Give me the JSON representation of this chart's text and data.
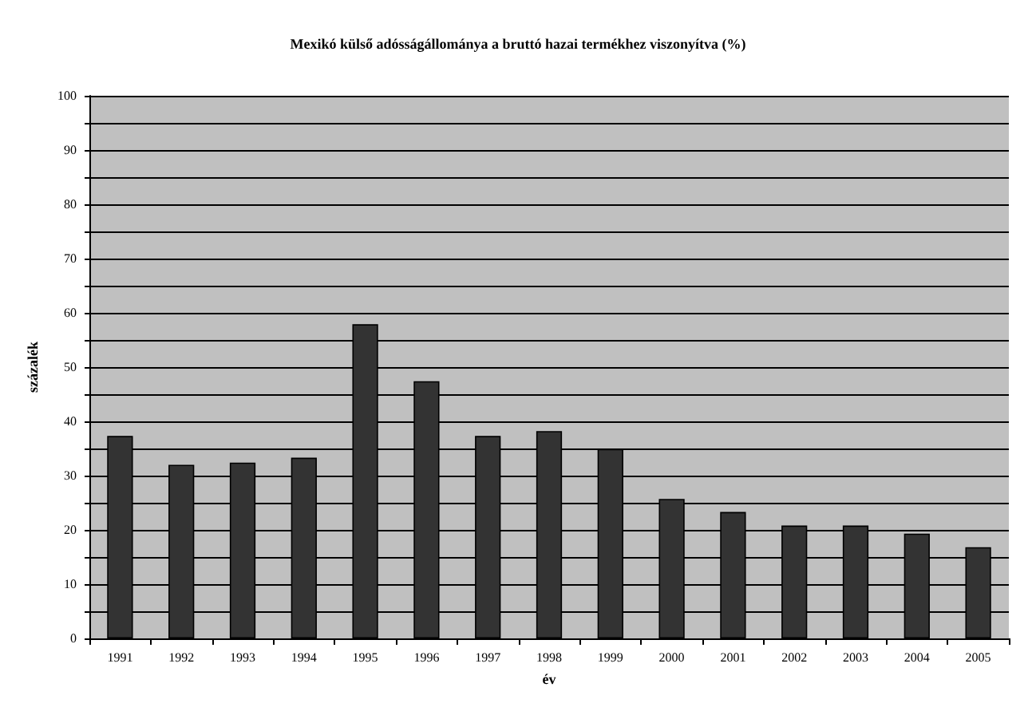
{
  "chart_data": {
    "type": "bar",
    "title": "Mexikó külső adósságállománya a bruttó hazai termékhez viszonyítva (%)",
    "xlabel": "év",
    "ylabel": "százalék",
    "categories": [
      "1991",
      "1992",
      "1993",
      "1994",
      "1995",
      "1996",
      "1997",
      "1998",
      "1999",
      "2000",
      "2001",
      "2002",
      "2003",
      "2004",
      "2005"
    ],
    "values": [
      37.3,
      32.0,
      32.4,
      33.3,
      57.9,
      47.4,
      37.3,
      38.2,
      34.9,
      25.7,
      23.3,
      20.8,
      20.8,
      19.3,
      16.8
    ],
    "color": "#333333",
    "ylim": [
      0,
      100
    ],
    "yticks": [
      0,
      {
        "value": 5,
        "label": null
      },
      10,
      {
        "value": 15,
        "label": null
      },
      20,
      {
        "value": 25,
        "label": null
      },
      30,
      {
        "value": 35,
        "label": null
      },
      40,
      {
        "value": 45,
        "label": null
      },
      50,
      {
        "value": 55,
        "label": null
      },
      60,
      {
        "value": 65,
        "label": null
      },
      70,
      {
        "value": 75,
        "label": null
      },
      80,
      {
        "value": 85,
        "label": null
      },
      90,
      {
        "value": 95,
        "label": null
      },
      100
    ],
    "grid": "y"
  }
}
